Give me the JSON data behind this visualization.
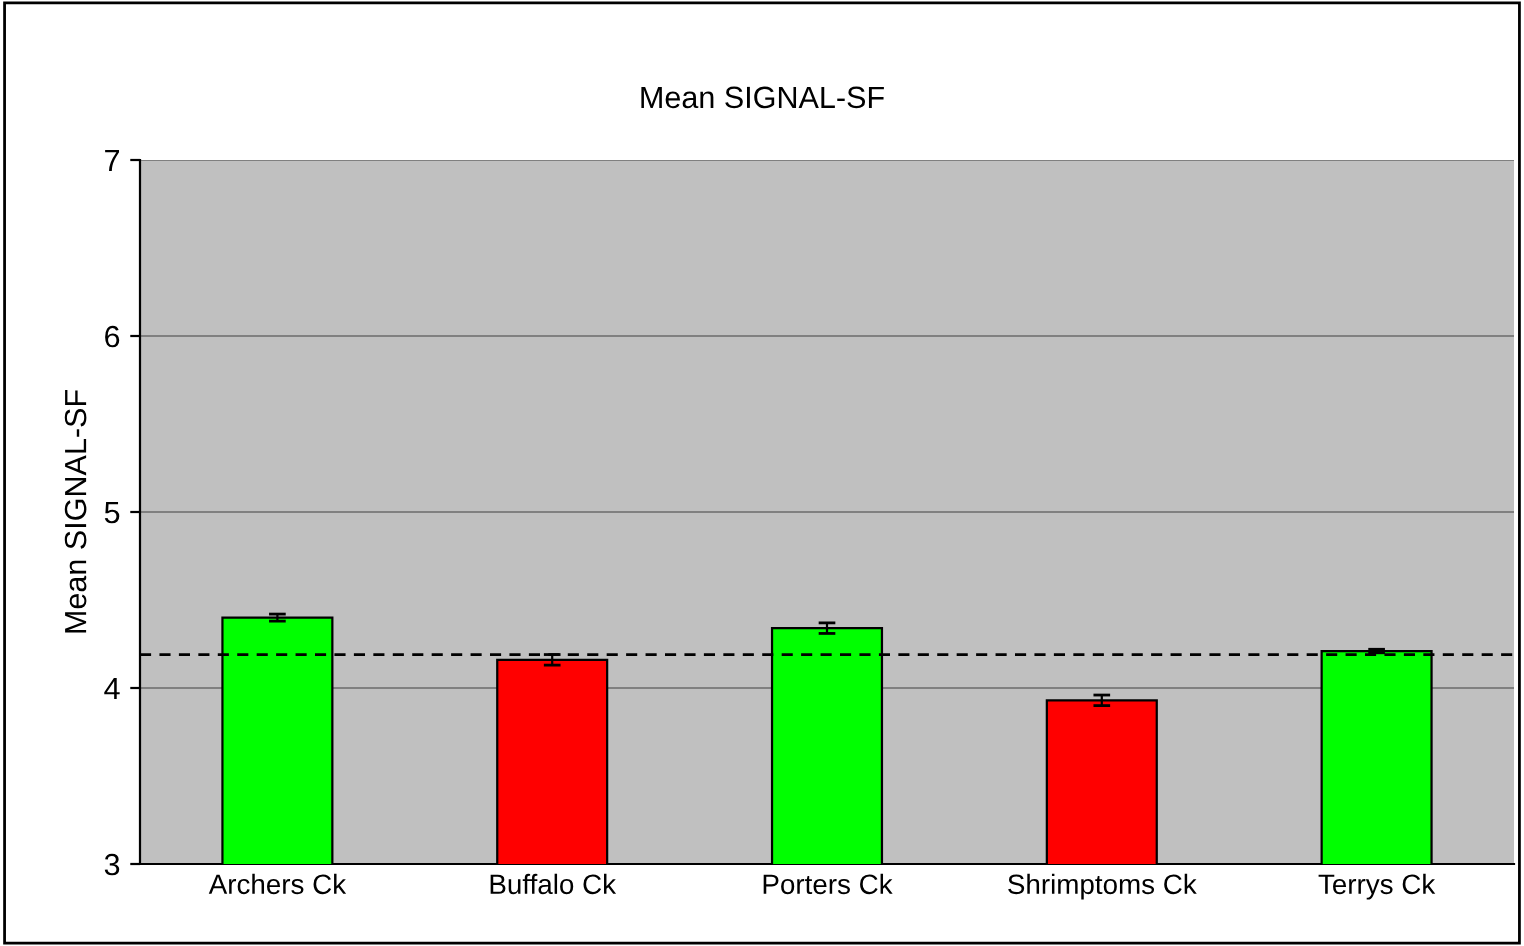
{
  "chart_data": {
    "type": "bar",
    "title": "Mean SIGNAL-SF",
    "ylabel": "Mean SIGNAL-SF",
    "categories": [
      "Archers Ck",
      "Buffalo Ck",
      "Porters Ck",
      "Shrimptoms Ck",
      "Terrys Ck"
    ],
    "values": [
      4.4,
      4.16,
      4.34,
      3.93,
      4.21
    ],
    "errors": [
      0.02,
      0.03,
      0.03,
      0.03,
      0.01
    ],
    "colors": [
      "#00ff00",
      "#ff0000",
      "#00ff00",
      "#ff0000",
      "#00ff00"
    ],
    "ylim": [
      3,
      7
    ],
    "yticks": [
      3,
      4,
      5,
      6,
      7
    ],
    "grid": "y",
    "ref_lines": [
      {
        "axis": "y",
        "value": 4.19,
        "line_style": "dashed",
        "color": "#000000"
      }
    ]
  }
}
